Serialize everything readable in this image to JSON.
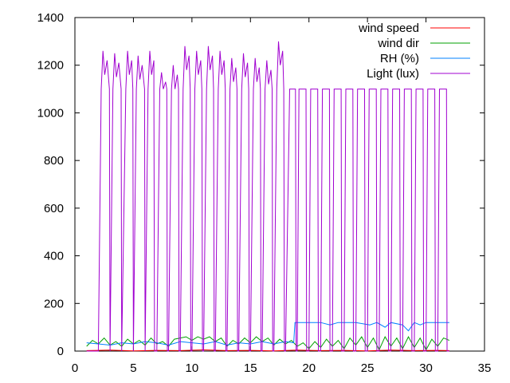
{
  "chart_data": {
    "type": "line",
    "title": "",
    "xlabel": "",
    "ylabel": "",
    "xlim": [
      0,
      35
    ],
    "ylim": [
      0,
      1400
    ],
    "xticks": [
      0,
      5,
      10,
      15,
      20,
      25,
      30,
      35
    ],
    "yticks": [
      0,
      200,
      400,
      600,
      800,
      1000,
      1200,
      1400
    ],
    "grid": false,
    "legend_position": "top-right",
    "series": [
      {
        "name": "wind speed",
        "color": "#ff0000",
        "points": [
          [
            1.0,
            2
          ],
          [
            3.0,
            4
          ],
          [
            5.0,
            1
          ],
          [
            7.0,
            3
          ],
          [
            9.0,
            2
          ],
          [
            11.0,
            5
          ],
          [
            13.0,
            2
          ],
          [
            15.0,
            3
          ],
          [
            17.0,
            1
          ],
          [
            19.0,
            4
          ],
          [
            21.0,
            2
          ],
          [
            23.0,
            3
          ],
          [
            25.0,
            1
          ],
          [
            27.0,
            4
          ],
          [
            29.0,
            2
          ],
          [
            31.0,
            3
          ],
          [
            32.0,
            2
          ]
        ]
      },
      {
        "name": "wind dir",
        "color": "#00a000",
        "points": [
          [
            1.0,
            20
          ],
          [
            1.5,
            45
          ],
          [
            2.0,
            30
          ],
          [
            2.5,
            55
          ],
          [
            3.0,
            25
          ],
          [
            3.5,
            40
          ],
          [
            4.0,
            20
          ],
          [
            4.5,
            50
          ],
          [
            5.0,
            30
          ],
          [
            5.5,
            45
          ],
          [
            6.0,
            25
          ],
          [
            6.5,
            55
          ],
          [
            7.0,
            30
          ],
          [
            7.5,
            40
          ],
          [
            8.0,
            20
          ],
          [
            8.5,
            50
          ],
          [
            9.0,
            55
          ],
          [
            9.5,
            60
          ],
          [
            10.0,
            45
          ],
          [
            10.5,
            60
          ],
          [
            11.0,
            50
          ],
          [
            11.5,
            60
          ],
          [
            12.0,
            40
          ],
          [
            12.5,
            55
          ],
          [
            13.0,
            20
          ],
          [
            13.5,
            45
          ],
          [
            14.0,
            30
          ],
          [
            14.5,
            55
          ],
          [
            15.0,
            35
          ],
          [
            15.5,
            60
          ],
          [
            16.0,
            40
          ],
          [
            16.5,
            55
          ],
          [
            17.0,
            25
          ],
          [
            17.5,
            50
          ],
          [
            18.0,
            30
          ],
          [
            18.5,
            45
          ],
          [
            19.0,
            20
          ],
          [
            19.5,
            35
          ],
          [
            20.0,
            10
          ],
          [
            20.5,
            40
          ],
          [
            21.0,
            15
          ],
          [
            21.5,
            50
          ],
          [
            22.0,
            20
          ],
          [
            22.5,
            45
          ],
          [
            23.0,
            10
          ],
          [
            23.5,
            55
          ],
          [
            24.0,
            25
          ],
          [
            24.5,
            60
          ],
          [
            25.0,
            15
          ],
          [
            25.5,
            55
          ],
          [
            26.0,
            5
          ],
          [
            26.5,
            60
          ],
          [
            27.0,
            20
          ],
          [
            27.5,
            55
          ],
          [
            28.0,
            10
          ],
          [
            28.5,
            60
          ],
          [
            29.0,
            15
          ],
          [
            29.5,
            55
          ],
          [
            30.0,
            5
          ],
          [
            30.5,
            50
          ],
          [
            31.0,
            20
          ],
          [
            31.5,
            55
          ],
          [
            32.0,
            45
          ]
        ]
      },
      {
        "name": "RH (%)",
        "color": "#0080ff",
        "points": [
          [
            1.0,
            35
          ],
          [
            2.0,
            30
          ],
          [
            3.0,
            25
          ],
          [
            4.0,
            35
          ],
          [
            5.0,
            30
          ],
          [
            6.0,
            40
          ],
          [
            7.0,
            35
          ],
          [
            8.0,
            25
          ],
          [
            9.0,
            40
          ],
          [
            10.0,
            35
          ],
          [
            11.0,
            30
          ],
          [
            12.0,
            40
          ],
          [
            13.0,
            25
          ],
          [
            14.0,
            35
          ],
          [
            15.0,
            30
          ],
          [
            16.0,
            40
          ],
          [
            17.0,
            30
          ],
          [
            18.0,
            40
          ],
          [
            18.7,
            35
          ],
          [
            18.8,
            120
          ],
          [
            21.0,
            120
          ],
          [
            21.8,
            110
          ],
          [
            22.5,
            120
          ],
          [
            24.0,
            120
          ],
          [
            25.2,
            110
          ],
          [
            25.8,
            120
          ],
          [
            26.5,
            100
          ],
          [
            27.0,
            120
          ],
          [
            28.0,
            110
          ],
          [
            28.5,
            85
          ],
          [
            29.0,
            120
          ],
          [
            29.5,
            110
          ],
          [
            30.0,
            120
          ],
          [
            32.0,
            120
          ]
        ]
      },
      {
        "name": "Light (lux)",
        "color": "#a000d0",
        "cycles": [
          {
            "off": 2.0,
            "on": 2.3,
            "peak": 1260,
            "fall": 3.0
          },
          {
            "off": 3.0,
            "on": 3.3,
            "peak": 1250,
            "fall": 4.0
          },
          {
            "off": 4.0,
            "on": 4.4,
            "peak": 1260,
            "fall": 5.0
          },
          {
            "off": 5.0,
            "on": 5.3,
            "peak": 1240,
            "fall": 6.0
          },
          {
            "off": 6.0,
            "on": 6.3,
            "peak": 1260,
            "fall": 6.8
          },
          {
            "off": 7.0,
            "on": 7.3,
            "peak": 1170,
            "fall": 7.9
          },
          {
            "off": 8.0,
            "on": 8.3,
            "peak": 1200,
            "fall": 8.9
          },
          {
            "off": 9.0,
            "on": 9.3,
            "peak": 1280,
            "fall": 9.9
          },
          {
            "off": 10.0,
            "on": 10.3,
            "peak": 1260,
            "fall": 10.9
          },
          {
            "off": 11.0,
            "on": 11.3,
            "peak": 1280,
            "fall": 11.9
          },
          {
            "off": 12.0,
            "on": 12.3,
            "peak": 1260,
            "fall": 12.9
          },
          {
            "off": 13.0,
            "on": 13.3,
            "peak": 1230,
            "fall": 13.9
          },
          {
            "off": 14.0,
            "on": 14.3,
            "peak": 1250,
            "fall": 14.9
          },
          {
            "off": 15.0,
            "on": 15.3,
            "peak": 1230,
            "fall": 15.9
          },
          {
            "off": 16.0,
            "on": 16.3,
            "peak": 1220,
            "fall": 16.9
          },
          {
            "off": 17.0,
            "on": 17.3,
            "peak": 1300,
            "fall": 17.9
          },
          {
            "off": 18.0,
            "on": 18.4,
            "peak": 1100,
            "fall": 18.9
          },
          {
            "off": 19.0,
            "on": 19.2,
            "peak": 1100,
            "fall": 19.8
          },
          {
            "off": 20.0,
            "on": 20.2,
            "peak": 1100,
            "fall": 20.8
          },
          {
            "off": 21.0,
            "on": 21.2,
            "peak": 1100,
            "fall": 21.8
          },
          {
            "off": 22.0,
            "on": 22.2,
            "peak": 1100,
            "fall": 22.8
          },
          {
            "off": 23.0,
            "on": 23.2,
            "peak": 1100,
            "fall": 23.8
          },
          {
            "off": 24.0,
            "on": 24.2,
            "peak": 1100,
            "fall": 24.8
          },
          {
            "off": 25.0,
            "on": 25.2,
            "peak": 1100,
            "fall": 25.8
          },
          {
            "off": 26.0,
            "on": 26.2,
            "peak": 1100,
            "fall": 26.8
          },
          {
            "off": 27.0,
            "on": 27.2,
            "peak": 1100,
            "fall": 27.8
          },
          {
            "off": 28.0,
            "on": 28.2,
            "peak": 1100,
            "fall": 28.8
          },
          {
            "off": 29.0,
            "on": 29.2,
            "peak": 1100,
            "fall": 29.8
          },
          {
            "off": 30.0,
            "on": 30.2,
            "peak": 1100,
            "fall": 30.8
          },
          {
            "off": 31.0,
            "on": 31.2,
            "peak": 1100,
            "fall": 31.8
          }
        ],
        "end": {
          "x": 32.0,
          "y": 0
        }
      }
    ]
  }
}
